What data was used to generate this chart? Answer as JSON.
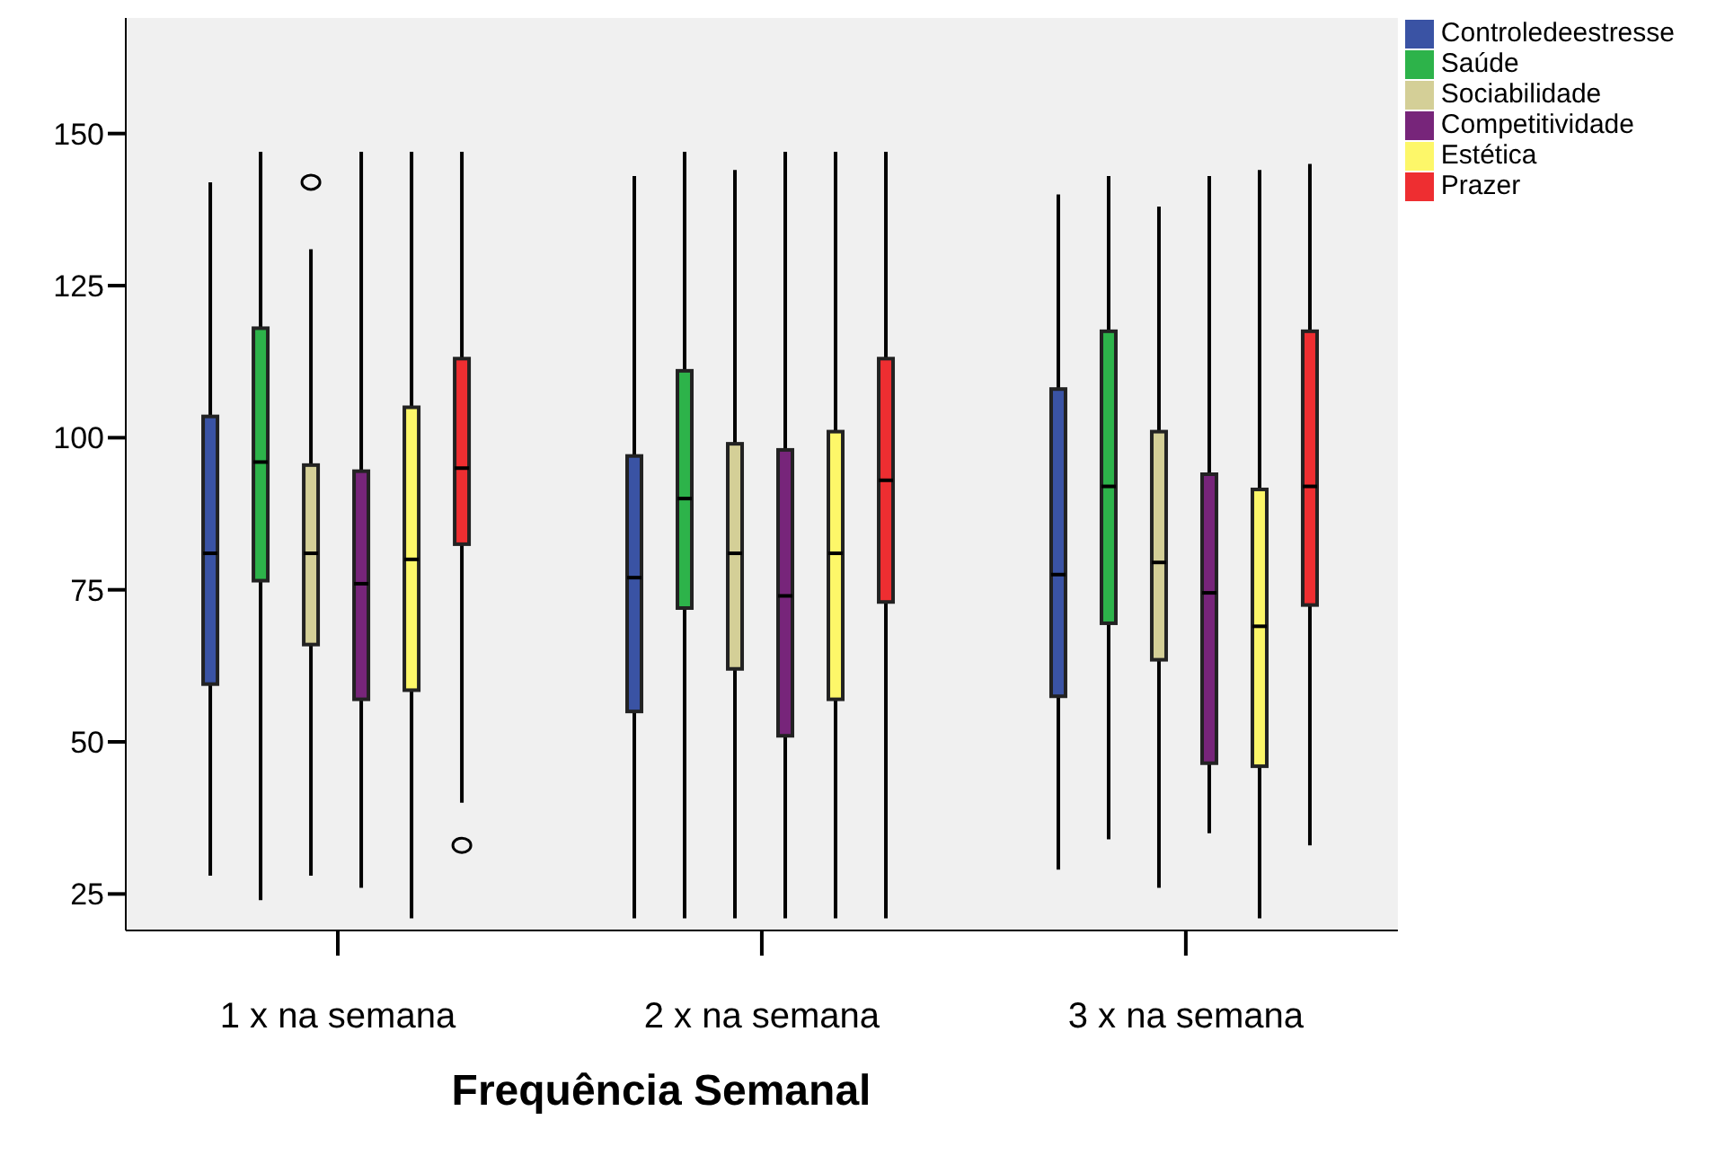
{
  "chart_data": {
    "type": "box",
    "xlabel": "Frequência Semanal",
    "categories": [
      "1 x na semana",
      "2 x na semana",
      "3 x na semana"
    ],
    "ylim": [
      19,
      169
    ],
    "yticks": [
      25,
      50,
      75,
      100,
      125,
      150
    ],
    "grid": false,
    "legend": "top right",
    "series": [
      {
        "name": "Controledeestresse",
        "color": "#3a53a4",
        "boxes": [
          {
            "low": 28,
            "q1": 59.5,
            "median": 81,
            "q3": 103.5,
            "high": 142
          },
          {
            "low": 21,
            "q1": 55,
            "median": 77,
            "q3": 97,
            "high": 143
          },
          {
            "low": 29,
            "q1": 57.5,
            "median": 77.5,
            "q3": 108,
            "high": 140
          }
        ]
      },
      {
        "name": "Saúde",
        "color": "#2db34a",
        "boxes": [
          {
            "low": 24,
            "q1": 76.5,
            "median": 96,
            "q3": 118,
            "high": 147
          },
          {
            "low": 21,
            "q1": 72,
            "median": 90,
            "q3": 111,
            "high": 147
          },
          {
            "low": 34,
            "q1": 69.5,
            "median": 92,
            "q3": 117.5,
            "high": 143
          }
        ]
      },
      {
        "name": "Sociabilidade",
        "color": "#d4cf97",
        "boxes": [
          {
            "low": 28,
            "q1": 66,
            "median": 81,
            "q3": 95.5,
            "high": 131,
            "outliers": [
              142
            ]
          },
          {
            "low": 21,
            "q1": 62,
            "median": 81,
            "q3": 99,
            "high": 144
          },
          {
            "low": 26,
            "q1": 63.5,
            "median": 79.5,
            "q3": 101,
            "high": 138
          }
        ]
      },
      {
        "name": "Competitividade",
        "color": "#77257a",
        "boxes": [
          {
            "low": 26,
            "q1": 57,
            "median": 76,
            "q3": 94.5,
            "high": 147
          },
          {
            "low": 21,
            "q1": 51,
            "median": 74,
            "q3": 98,
            "high": 147
          },
          {
            "low": 35,
            "q1": 46.5,
            "median": 74.5,
            "q3": 94,
            "high": 143
          }
        ]
      },
      {
        "name": "Estética",
        "color": "#fdf769",
        "boxes": [
          {
            "low": 21,
            "q1": 58.5,
            "median": 80,
            "q3": 105,
            "high": 147
          },
          {
            "low": 21,
            "q1": 57,
            "median": 81,
            "q3": 101,
            "high": 147
          },
          {
            "low": 21,
            "q1": 46,
            "median": 69,
            "q3": 91.5,
            "high": 144
          }
        ]
      },
      {
        "name": "Prazer",
        "color": "#ee2e31",
        "boxes": [
          {
            "low": 40,
            "q1": 82.5,
            "median": 95,
            "q3": 113,
            "high": 147,
            "outliers": [
              33
            ]
          },
          {
            "low": 21,
            "q1": 73,
            "median": 93,
            "q3": 113,
            "high": 147
          },
          {
            "low": 33,
            "q1": 72.5,
            "median": 92,
            "q3": 117.5,
            "high": 145
          }
        ]
      }
    ]
  }
}
